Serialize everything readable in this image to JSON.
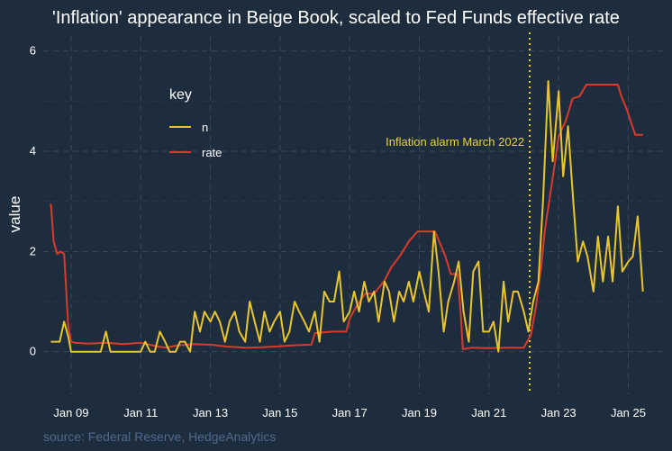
{
  "colors": {
    "background": "#1e2d3d",
    "grid": "#3a4b5c",
    "n": "#e8c431",
    "rate": "#d93a2b",
    "annotation": "#e8d43a",
    "source": "#4f6a8c"
  },
  "chart_data": {
    "type": "line",
    "title": "'Inflation' appearance in Beige Book, scaled to Fed Funds effective rate",
    "ylabel": "value",
    "xlabel": "",
    "xlim": [
      2008.2,
      2026.1
    ],
    "ylim": [
      -0.85,
      6.3
    ],
    "y_ticks": [
      0,
      2,
      4,
      6
    ],
    "x_ticks": [
      {
        "value": 2009,
        "label": "Jan 09"
      },
      {
        "value": 2011,
        "label": "Jan 11"
      },
      {
        "value": 2013,
        "label": "Jan 13"
      },
      {
        "value": 2015,
        "label": "Jan 15"
      },
      {
        "value": 2017,
        "label": "Jan 17"
      },
      {
        "value": 2019,
        "label": "Jan 19"
      },
      {
        "value": 2021,
        "label": "Jan 21"
      },
      {
        "value": 2023,
        "label": "Jan 23"
      },
      {
        "value": 2025,
        "label": "Jan 25"
      }
    ],
    "grid": true,
    "legend": {
      "title": "key",
      "position": "top-left",
      "entries": [
        "n",
        "rate"
      ]
    },
    "annotation": {
      "x": 2022.17,
      "text": "Inflation alarm March 2022"
    },
    "source": "source: Federal Reserve, HedgeAnalytics",
    "series": [
      {
        "name": "n",
        "color": "#e8c431",
        "x": [
          2008.42,
          2008.55,
          2008.67,
          2008.8,
          2008.92,
          2009.0,
          2009.17,
          2009.3,
          2009.45,
          2009.58,
          2009.72,
          2009.85,
          2010.0,
          2010.13,
          2010.27,
          2010.42,
          2010.55,
          2010.7,
          2010.83,
          2011.0,
          2011.13,
          2011.27,
          2011.4,
          2011.55,
          2011.7,
          2011.83,
          2012.0,
          2012.13,
          2012.27,
          2012.42,
          2012.55,
          2012.7,
          2012.83,
          2013.0,
          2013.13,
          2013.27,
          2013.42,
          2013.55,
          2013.7,
          2013.83,
          2014.0,
          2014.13,
          2014.27,
          2014.42,
          2014.55,
          2014.7,
          2014.83,
          2015.0,
          2015.13,
          2015.27,
          2015.42,
          2015.55,
          2015.7,
          2015.83,
          2016.0,
          2016.13,
          2016.27,
          2016.42,
          2016.55,
          2016.7,
          2016.83,
          2017.0,
          2017.13,
          2017.27,
          2017.42,
          2017.55,
          2017.7,
          2017.83,
          2018.0,
          2018.13,
          2018.27,
          2018.42,
          2018.55,
          2018.7,
          2018.83,
          2019.0,
          2019.13,
          2019.27,
          2019.42,
          2019.55,
          2019.7,
          2019.83,
          2020.0,
          2020.13,
          2020.27,
          2020.42,
          2020.55,
          2020.7,
          2020.83,
          2021.0,
          2021.13,
          2021.27,
          2021.42,
          2021.55,
          2021.7,
          2021.83,
          2022.0,
          2022.13,
          2022.27,
          2022.42,
          2022.55,
          2022.7,
          2022.83,
          2023.0,
          2023.13,
          2023.27,
          2023.42,
          2023.55,
          2023.7,
          2023.83,
          2024.0,
          2024.13,
          2024.27,
          2024.42,
          2024.55,
          2024.7,
          2024.83,
          2025.0,
          2025.13,
          2025.27,
          2025.42
        ],
        "y": [
          0.2,
          0.2,
          0.2,
          0.6,
          0.3,
          0.0,
          0.0,
          0.0,
          0.0,
          0.0,
          0.0,
          0.0,
          0.4,
          0.0,
          0.0,
          0.0,
          0.0,
          0.0,
          0.0,
          0.0,
          0.2,
          0.0,
          0.0,
          0.4,
          0.2,
          0.0,
          0.0,
          0.2,
          0.2,
          0.0,
          0.8,
          0.4,
          0.8,
          0.6,
          0.8,
          0.6,
          0.2,
          0.6,
          0.8,
          0.4,
          0.2,
          1.0,
          0.6,
          0.2,
          0.8,
          0.4,
          0.6,
          0.8,
          0.2,
          0.4,
          1.0,
          0.8,
          0.6,
          0.4,
          0.8,
          0.2,
          1.2,
          1.0,
          1.0,
          1.6,
          0.6,
          0.8,
          1.2,
          0.8,
          1.4,
          1.0,
          1.2,
          0.6,
          1.4,
          1.2,
          0.6,
          1.2,
          1.0,
          1.4,
          1.0,
          1.6,
          1.2,
          0.8,
          2.4,
          1.6,
          0.4,
          1.0,
          1.4,
          1.8,
          0.8,
          0.2,
          1.6,
          1.8,
          0.4,
          0.4,
          0.6,
          0.0,
          1.4,
          0.6,
          1.2,
          1.2,
          0.8,
          0.4,
          1.0,
          1.4,
          3.0,
          5.4,
          3.8,
          5.2,
          3.5,
          4.5,
          3.0,
          1.8,
          2.2,
          1.9,
          1.2,
          2.3,
          1.4,
          2.3,
          1.4,
          2.9,
          1.6,
          1.8,
          1.9,
          2.7,
          1.2
        ]
      },
      {
        "name": "rate",
        "color": "#d93a2b",
        "x": [
          2008.42,
          2008.5,
          2008.6,
          2008.7,
          2008.8,
          2008.92,
          2009.0,
          2009.1,
          2009.5,
          2010.0,
          2010.5,
          2011.0,
          2011.5,
          2011.75,
          2012.0,
          2012.5,
          2013.0,
          2013.5,
          2014.0,
          2014.5,
          2015.0,
          2015.5,
          2015.9,
          2016.0,
          2016.5,
          2016.9,
          2017.0,
          2017.2,
          2017.45,
          2017.7,
          2018.0,
          2018.2,
          2018.45,
          2018.7,
          2018.95,
          2019.2,
          2019.45,
          2019.6,
          2019.75,
          2019.9,
          2020.1,
          2020.2,
          2020.25,
          2020.5,
          2021.0,
          2021.5,
          2022.0,
          2022.2,
          2022.35,
          2022.5,
          2022.6,
          2022.75,
          2022.9,
          2023.0,
          2023.2,
          2023.4,
          2023.6,
          2023.8,
          2024.0,
          2024.5,
          2024.7,
          2024.8,
          2024.95,
          2025.2,
          2025.42
        ],
        "y": [
          2.95,
          2.2,
          1.95,
          2.0,
          1.95,
          0.5,
          0.2,
          0.18,
          0.16,
          0.18,
          0.15,
          0.18,
          0.1,
          0.08,
          0.12,
          0.15,
          0.14,
          0.1,
          0.08,
          0.09,
          0.11,
          0.13,
          0.14,
          0.37,
          0.4,
          0.4,
          0.66,
          0.91,
          1.16,
          1.16,
          1.42,
          1.69,
          1.92,
          2.2,
          2.4,
          2.4,
          2.4,
          2.15,
          1.9,
          1.55,
          1.55,
          0.65,
          0.05,
          0.08,
          0.07,
          0.08,
          0.08,
          0.33,
          0.9,
          1.7,
          2.4,
          3.1,
          3.8,
          4.3,
          4.6,
          5.05,
          5.1,
          5.33,
          5.33,
          5.33,
          5.33,
          5.1,
          4.85,
          4.33,
          4.33
        ]
      }
    ]
  }
}
